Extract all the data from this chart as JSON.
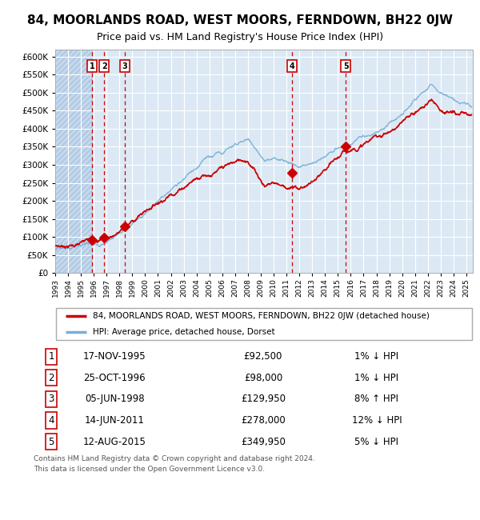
{
  "title": "84, MOORLANDS ROAD, WEST MOORS, FERNDOWN, BH22 0JW",
  "subtitle": "Price paid vs. HM Land Registry's House Price Index (HPI)",
  "legend_line1": "84, MOORLANDS ROAD, WEST MOORS, FERNDOWN, BH22 0JW (detached house)",
  "legend_line2": "HPI: Average price, detached house, Dorset",
  "footer1": "Contains HM Land Registry data © Crown copyright and database right 2024.",
  "footer2": "This data is licensed under the Open Government Licence v3.0.",
  "transactions": [
    {
      "num": 1,
      "price": 92500,
      "x_year": 1995.88
    },
    {
      "num": 2,
      "price": 98000,
      "x_year": 1996.82
    },
    {
      "num": 3,
      "price": 129950,
      "x_year": 1998.43
    },
    {
      "num": 4,
      "price": 278000,
      "x_year": 2011.45
    },
    {
      "num": 5,
      "price": 349950,
      "x_year": 2015.62
    }
  ],
  "table_rows": [
    {
      "num": 1,
      "date_str": "17-NOV-1995",
      "price_str": "£92,500",
      "hpi_str": "1% ↓ HPI"
    },
    {
      "num": 2,
      "date_str": "25-OCT-1996",
      "price_str": "£98,000",
      "hpi_str": "1% ↓ HPI"
    },
    {
      "num": 3,
      "date_str": "05-JUN-1998",
      "price_str": "£129,950",
      "hpi_str": "8% ↑ HPI"
    },
    {
      "num": 4,
      "date_str": "14-JUN-2011",
      "price_str": "£278,000",
      "hpi_str": "12% ↓ HPI"
    },
    {
      "num": 5,
      "date_str": "12-AUG-2015",
      "price_str": "£349,950",
      "hpi_str": "5% ↓ HPI"
    }
  ],
  "ylim": [
    0,
    620000
  ],
  "yticks": [
    0,
    50000,
    100000,
    150000,
    200000,
    250000,
    300000,
    350000,
    400000,
    450000,
    500000,
    550000,
    600000
  ],
  "xlim_start": 1993.0,
  "xlim_end": 2025.5,
  "plot_bg": "#dce9f5",
  "grid_color": "#ffffff",
  "hatch_color": "#c5d8ee",
  "red_line_color": "#cc0000",
  "blue_line_color": "#7ab0d4",
  "dashed_line_color": "#cc0000",
  "marker_color": "#cc0000",
  "box_color": "#cc0000",
  "title_fontsize": 11,
  "subtitle_fontsize": 9
}
